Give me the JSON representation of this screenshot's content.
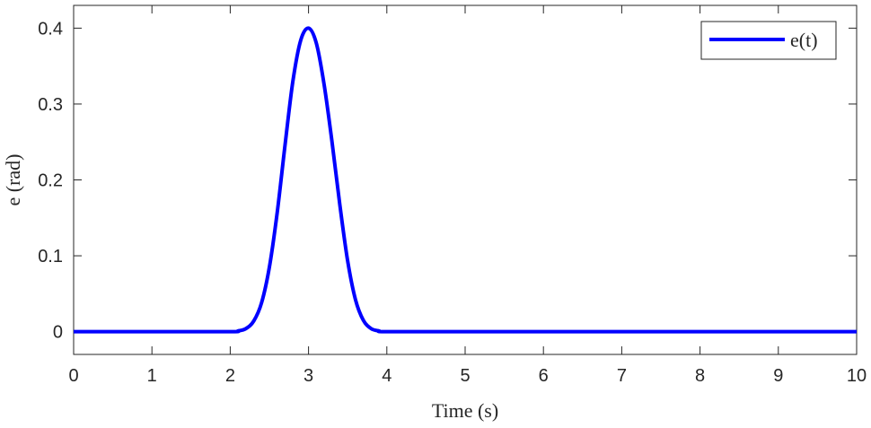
{
  "chart_data": {
    "type": "line",
    "title": "",
    "xlabel": "Time (s)",
    "ylabel": "e (rad)",
    "xlim": [
      0,
      10
    ],
    "ylim": [
      -0.03,
      0.43
    ],
    "xticks": [
      0,
      1,
      2,
      3,
      4,
      5,
      6,
      7,
      8,
      9,
      10
    ],
    "xtick_labels": [
      "0",
      "1",
      "2",
      "3",
      "4",
      "5",
      "6",
      "7",
      "8",
      "9",
      "10"
    ],
    "yticks": [
      0,
      0.1,
      0.2,
      0.3,
      0.4
    ],
    "ytick_labels": [
      "0",
      "0.1",
      "0.2",
      "0.3",
      "0.4"
    ],
    "grid": false,
    "legend": {
      "position": "top-right"
    },
    "series": [
      {
        "name": "e(t)",
        "color": "#0000ff",
        "x": [
          0,
          1,
          2,
          2.1,
          2.2,
          2.3,
          2.4,
          2.5,
          2.6,
          2.7,
          2.8,
          2.9,
          3.0,
          3.1,
          3.2,
          3.3,
          3.4,
          3.5,
          3.6,
          3.7,
          3.8,
          3.9,
          4.0,
          5,
          6,
          7,
          8,
          9,
          10
        ],
        "y": [
          0,
          0,
          0,
          0.001,
          0.004,
          0.014,
          0.038,
          0.085,
          0.157,
          0.246,
          0.33,
          0.384,
          0.4,
          0.38,
          0.325,
          0.25,
          0.167,
          0.093,
          0.042,
          0.015,
          0.004,
          0.001,
          0,
          0,
          0,
          0,
          0,
          0,
          0
        ]
      }
    ]
  }
}
